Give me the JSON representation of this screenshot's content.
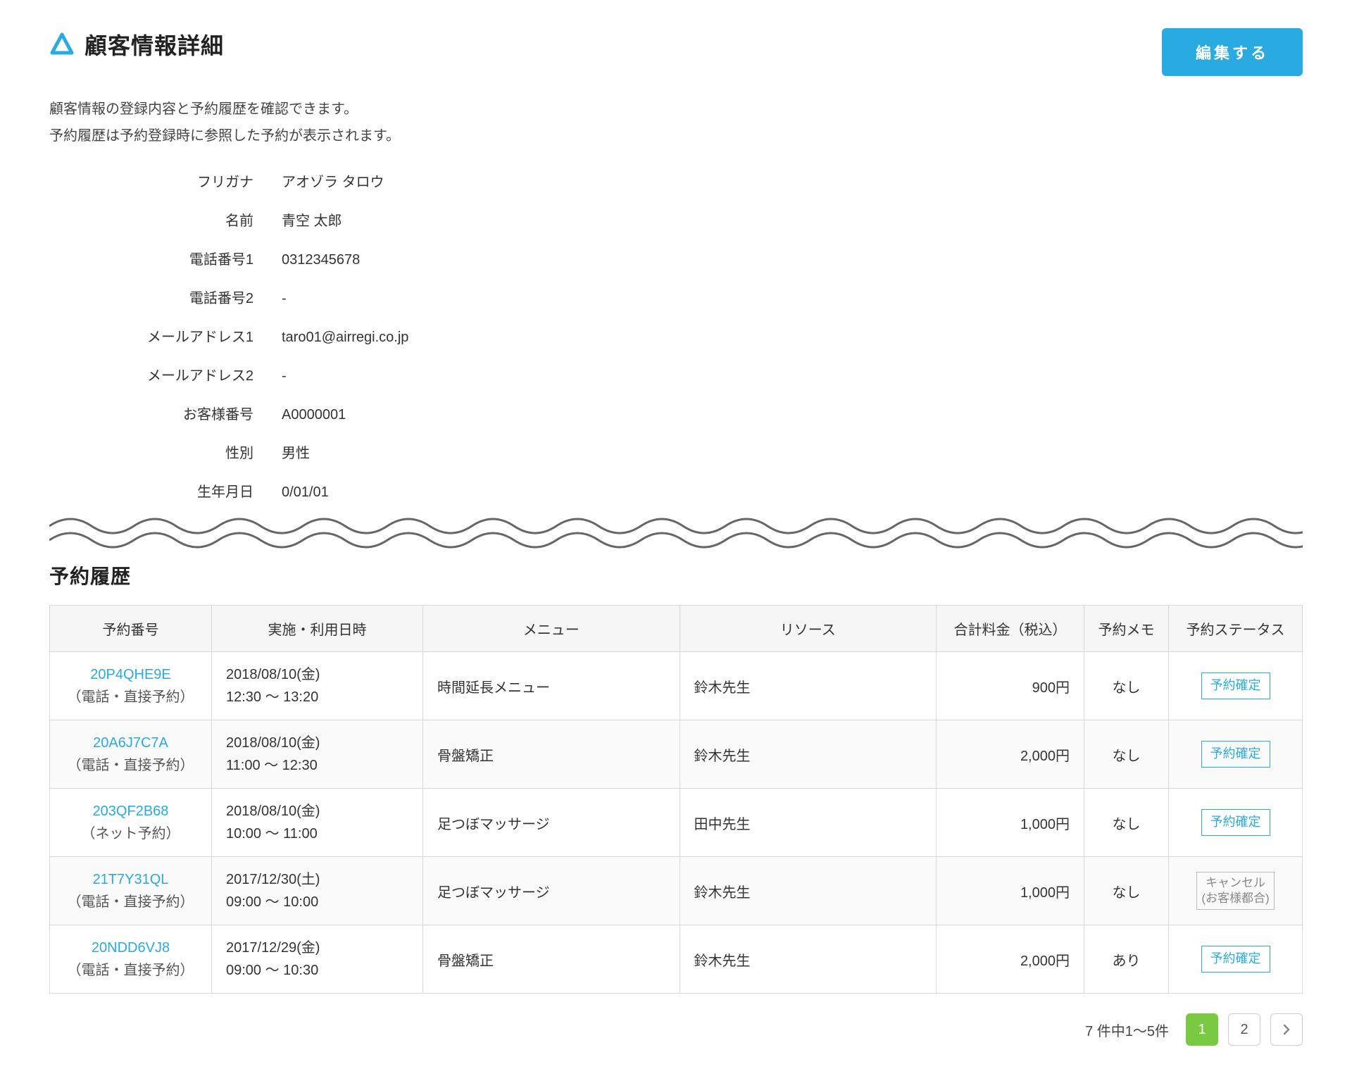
{
  "colors": {
    "accent_blue": "#29abe2",
    "accent_green": "#7ac943",
    "divider_gray": "#666666",
    "border_gray": "#d8d8d8",
    "text": "#333333",
    "row_alt_bg": "#fafafa",
    "header_bg": "#f6f6f6",
    "status_cancel_text": "#888888",
    "status_cancel_border": "#bbbbbb"
  },
  "header": {
    "page_title": "顧客情報詳細",
    "edit_button": "編集する",
    "description_line1": "顧客情報の登録内容と予約履歴を確認できます。",
    "description_line2": "予約履歴は予約登録時に参照した予約が表示されます。"
  },
  "customer": {
    "fields": [
      {
        "label": "フリガナ",
        "value": "アオゾラ タロウ"
      },
      {
        "label": "名前",
        "value": "青空 太郎"
      },
      {
        "label": "電話番号1",
        "value": "0312345678"
      },
      {
        "label": "電話番号2",
        "value": "-"
      },
      {
        "label": "メールアドレス1",
        "value": "taro01@airregi.co.jp"
      },
      {
        "label": "メールアドレス2",
        "value": "-"
      },
      {
        "label": "お客様番号",
        "value": "A0000001"
      },
      {
        "label": "性別",
        "value": "男性"
      },
      {
        "label": "生年月日",
        "value": "0/01/01"
      }
    ]
  },
  "history": {
    "section_title": "予約履歴",
    "columns": {
      "number": "予約番号",
      "datetime": "実施・利用日時",
      "menu": "メニュー",
      "resource": "リソース",
      "price": "合計料金（税込）",
      "memo": "予約メモ",
      "status": "予約ステータス"
    },
    "rows": [
      {
        "number": "20P4QHE9E",
        "type": "（電話・直接予約）",
        "date": "2018/08/10(金)",
        "time": "12:30 〜 13:20",
        "menu": "時間延長メニュー",
        "resource": "鈴木先生",
        "price": "900円",
        "memo": "なし",
        "status_text": "予約確定",
        "status_kind": "confirmed"
      },
      {
        "number": "20A6J7C7A",
        "type": "（電話・直接予約）",
        "date": "2018/08/10(金)",
        "time": "11:00 〜 12:30",
        "menu": "骨盤矯正",
        "resource": "鈴木先生",
        "price": "2,000円",
        "memo": "なし",
        "status_text": "予約確定",
        "status_kind": "confirmed"
      },
      {
        "number": "203QF2B68",
        "type": "（ネット予約）",
        "date": "2018/08/10(金)",
        "time": "10:00 〜 11:00",
        "menu": "足つぼマッサージ",
        "resource": "田中先生",
        "price": "1,000円",
        "memo": "なし",
        "status_text": "予約確定",
        "status_kind": "confirmed"
      },
      {
        "number": "21T7Y31QL",
        "type": "（電話・直接予約）",
        "date": "2017/12/30(土)",
        "time": "09:00 〜 10:00",
        "menu": "足つぼマッサージ",
        "resource": "鈴木先生",
        "price": "1,000円",
        "memo": "なし",
        "status_text": "キャンセル\n(お客様都合)",
        "status_kind": "cancel"
      },
      {
        "number": "20NDD6VJ8",
        "type": "（電話・直接予約）",
        "date": "2017/12/29(金)",
        "time": "09:00 〜 10:30",
        "menu": "骨盤矯正",
        "resource": "鈴木先生",
        "price": "2,000円",
        "memo": "あり",
        "status_text": "予約確定",
        "status_kind": "confirmed"
      }
    ]
  },
  "pagination": {
    "summary": "7 件中1〜5件",
    "pages": [
      {
        "label": "1",
        "active": true
      },
      {
        "label": "2",
        "active": false
      }
    ],
    "has_next": true
  }
}
